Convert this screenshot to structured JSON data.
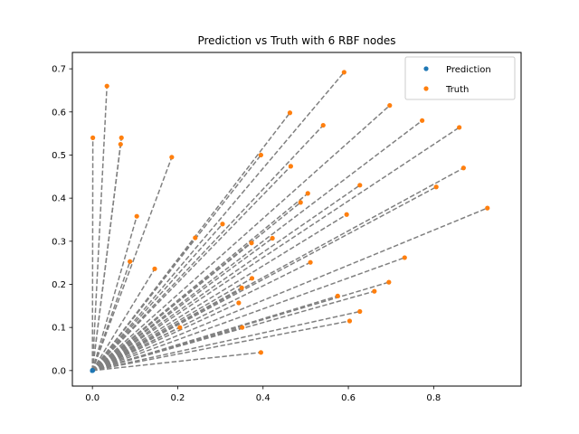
{
  "chart_data": {
    "type": "scatter",
    "title": "Prediction vs Truth with 6 RBF nodes",
    "xlabel": "",
    "ylabel": "",
    "xlim": [
      -0.047,
      1.005
    ],
    "ylim": [
      -0.036,
      0.738
    ],
    "xticks": [
      0.0,
      0.2,
      0.4,
      0.6,
      0.8
    ],
    "yticks": [
      0.0,
      0.1,
      0.2,
      0.3,
      0.4,
      0.5,
      0.6,
      0.7
    ],
    "tick_labels_x": [
      "0.0",
      "0.2",
      "0.4",
      "0.6",
      "0.8"
    ],
    "tick_labels_y": [
      "0.0",
      "0.1",
      "0.2",
      "0.3",
      "0.4",
      "0.5",
      "0.6",
      "0.7"
    ],
    "legend": {
      "position": "top-right",
      "entries": [
        "Prediction",
        "Truth"
      ]
    },
    "grid": false,
    "colors": {
      "prediction": "#1f77b4",
      "truth": "#ff7f0e",
      "connector": "#808080",
      "axes": "#000000"
    },
    "series": [
      {
        "name": "Prediction",
        "points": [
          [
            0.0,
            0.0
          ],
          [
            0.0,
            0.0
          ],
          [
            0.0,
            0.0
          ],
          [
            0.0,
            0.0
          ],
          [
            0.0,
            0.0
          ],
          [
            0.0,
            0.0
          ],
          [
            0.0,
            0.0
          ],
          [
            0.0,
            0.0
          ],
          [
            0.0,
            0.0
          ],
          [
            0.0,
            0.0
          ],
          [
            0.0,
            0.0
          ],
          [
            0.0,
            0.0
          ],
          [
            0.0,
            0.0
          ],
          [
            0.0,
            0.0
          ],
          [
            0.0,
            0.0
          ],
          [
            0.0,
            0.0
          ],
          [
            0.0,
            0.0
          ],
          [
            0.0,
            0.0
          ],
          [
            0.0,
            0.0
          ],
          [
            0.0,
            0.0
          ],
          [
            0.0,
            0.0
          ],
          [
            0.0,
            0.0
          ],
          [
            0.0,
            0.0
          ],
          [
            0.0,
            0.0
          ],
          [
            0.0,
            0.0
          ],
          [
            0.0,
            0.0
          ],
          [
            0.0,
            0.0
          ],
          [
            0.0,
            0.0
          ],
          [
            0.0,
            0.0
          ],
          [
            0.0,
            0.0
          ],
          [
            0.0,
            0.0
          ],
          [
            0.0,
            0.0
          ],
          [
            0.0,
            0.0
          ],
          [
            0.0,
            0.0
          ],
          [
            0.0,
            0.0
          ],
          [
            0.0,
            0.0
          ],
          [
            0.0,
            0.0
          ],
          [
            0.0,
            0.0
          ],
          [
            0.0,
            0.0
          ],
          [
            0.0,
            0.0
          ]
        ]
      },
      {
        "name": "Truth",
        "points": [
          [
            0.001,
            0.54
          ],
          [
            0.034,
            0.66
          ],
          [
            0.068,
            0.54
          ],
          [
            0.066,
            0.525
          ],
          [
            0.186,
            0.495
          ],
          [
            0.104,
            0.358
          ],
          [
            0.088,
            0.253
          ],
          [
            0.146,
            0.236
          ],
          [
            0.59,
            0.692
          ],
          [
            0.463,
            0.598
          ],
          [
            0.697,
            0.615
          ],
          [
            0.541,
            0.569
          ],
          [
            0.773,
            0.58
          ],
          [
            0.86,
            0.564
          ],
          [
            0.395,
            0.5
          ],
          [
            0.465,
            0.474
          ],
          [
            0.87,
            0.47
          ],
          [
            0.505,
            0.411
          ],
          [
            0.627,
            0.43
          ],
          [
            0.806,
            0.426
          ],
          [
            0.488,
            0.39
          ],
          [
            0.596,
            0.362
          ],
          [
            0.926,
            0.377
          ],
          [
            0.305,
            0.34
          ],
          [
            0.241,
            0.308
          ],
          [
            0.422,
            0.307
          ],
          [
            0.373,
            0.296
          ],
          [
            0.511,
            0.251
          ],
          [
            0.732,
            0.262
          ],
          [
            0.374,
            0.214
          ],
          [
            0.35,
            0.192
          ],
          [
            0.695,
            0.205
          ],
          [
            0.661,
            0.184
          ],
          [
            0.575,
            0.173
          ],
          [
            0.343,
            0.157
          ],
          [
            0.627,
            0.137
          ],
          [
            0.603,
            0.115
          ],
          [
            0.205,
            0.1
          ],
          [
            0.351,
            0.1
          ],
          [
            0.395,
            0.042
          ]
        ]
      }
    ]
  }
}
